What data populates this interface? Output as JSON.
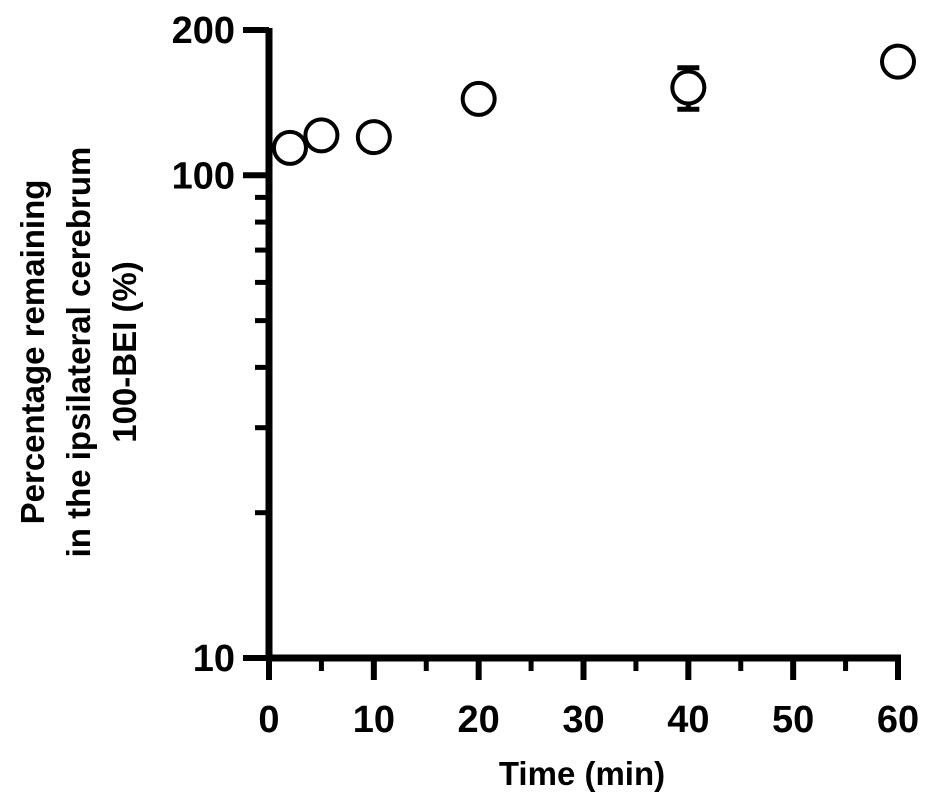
{
  "chart_data": {
    "type": "scatter",
    "title": "",
    "xlabel": "Time (min)",
    "ylabel": [
      "Percentage remaining",
      "in the ipsilateral cerebrum",
      "100-BEI (%)"
    ],
    "x_scale": "linear",
    "y_scale": "log",
    "xlim": [
      0,
      60
    ],
    "ylim": [
      10,
      200
    ],
    "x_ticks": [
      0,
      10,
      20,
      30,
      40,
      50,
      60
    ],
    "x_tick_labels": [
      "0",
      "10",
      "20",
      "30",
      "40",
      "50",
      "60"
    ],
    "y_ticks": [
      10,
      100,
      200
    ],
    "y_tick_labels": [
      "10",
      "100",
      "200"
    ],
    "grid": false,
    "legend": "none",
    "marker": "open-circle",
    "series": [
      {
        "x": [
          2,
          5,
          10,
          20,
          40,
          60
        ],
        "y": [
          114,
          121,
          120,
          144,
          152,
          172
        ],
        "error": [
          0,
          0,
          0,
          0,
          15,
          0
        ]
      }
    ]
  }
}
